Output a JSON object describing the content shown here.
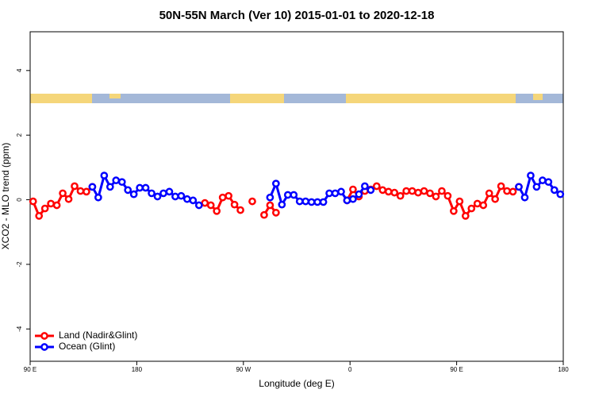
{
  "chart_data": {
    "type": "line",
    "title": "50N-55N March (Ver 10)   2015-01-01 to 2020-12-18",
    "xlabel": "Longitude (deg E)",
    "ylabel": "XCO2 - MLO trend (ppm)",
    "xlim": [
      90,
      540
    ],
    "xticks": [
      {
        "value": 90,
        "label": "90 E"
      },
      {
        "value": 180,
        "label": "180"
      },
      {
        "value": 270,
        "label": "90 W"
      },
      {
        "value": 360,
        "label": "0"
      },
      {
        "value": 450,
        "label": "90 E"
      },
      {
        "value": 540,
        "label": "180"
      }
    ],
    "ylim": [
      -5,
      5.2
    ],
    "yticks": [
      -4,
      -2,
      0,
      2,
      4
    ],
    "legend": "bottom-left",
    "x": [
      92.5,
      97.5,
      102.5,
      107.5,
      112.5,
      117.5,
      122.5,
      127.5,
      132.5,
      137.5,
      142.5,
      147.5,
      152.5,
      157.5,
      162.5,
      167.5,
      172.5,
      177.5,
      182.5,
      187.5,
      192.5,
      197.5,
      202.5,
      207.5,
      212.5,
      217.5,
      222.5,
      227.5,
      232.5,
      237.5,
      242.5,
      247.5,
      252.5,
      257.5,
      262.5,
      267.5,
      272.5,
      277.5,
      282.5,
      287.5,
      292.5,
      297.5,
      302.5,
      307.5,
      312.5,
      317.5,
      322.5,
      327.5,
      332.5,
      337.5,
      342.5,
      347.5,
      352.5,
      357.5,
      362.5,
      367.5,
      372.5,
      377.5,
      382.5,
      387.5,
      392.5,
      397.5,
      402.5,
      407.5,
      412.5,
      417.5,
      422.5,
      427.5,
      432.5,
      437.5,
      442.5,
      447.5,
      452.5,
      457.5,
      462.5,
      467.5,
      472.5,
      477.5,
      482.5,
      487.5,
      492.5,
      497.5,
      502.5,
      507.5,
      512.5,
      517.5,
      522.5,
      527.5,
      532.5,
      537.5
    ],
    "series": [
      {
        "name": "Land (Nadir&Glint)",
        "color": "#ff0000",
        "values": [
          -0.05,
          -0.5,
          -0.27,
          -0.12,
          -0.17,
          0.2,
          0.02,
          0.42,
          0.27,
          0.25,
          0.4,
          null,
          null,
          null,
          null,
          null,
          null,
          null,
          null,
          null,
          null,
          null,
          null,
          null,
          null,
          null,
          null,
          null,
          null,
          -0.1,
          -0.17,
          -0.35,
          0.07,
          0.12,
          -0.15,
          -0.32,
          null,
          -0.05,
          null,
          -0.47,
          -0.17,
          -0.4,
          null,
          null,
          null,
          null,
          null,
          null,
          null,
          null,
          null,
          null,
          null,
          -0.02,
          0.32,
          0.1,
          0.27,
          0.32,
          0.42,
          0.3,
          0.25,
          0.22,
          0.12,
          0.27,
          0.27,
          0.22,
          0.27,
          0.2,
          0.1,
          0.27,
          0.12,
          -0.35,
          -0.05,
          -0.5,
          -0.27,
          -0.12,
          -0.17,
          0.2,
          0.02,
          0.42,
          0.27,
          0.25,
          0.4,
          null,
          null,
          null,
          null,
          null,
          null,
          null
        ]
      },
      {
        "name": "Ocean (Glint)",
        "color": "#0000ff",
        "values": [
          null,
          null,
          null,
          null,
          null,
          null,
          null,
          null,
          null,
          null,
          0.4,
          0.07,
          0.75,
          0.4,
          0.6,
          0.55,
          0.3,
          0.17,
          0.37,
          0.37,
          0.2,
          0.1,
          0.2,
          0.25,
          0.1,
          0.12,
          0.02,
          -0.02,
          -0.17,
          null,
          null,
          null,
          null,
          null,
          null,
          null,
          null,
          null,
          null,
          null,
          0.07,
          0.5,
          -0.15,
          0.15,
          0.15,
          -0.05,
          -0.05,
          -0.07,
          -0.07,
          -0.07,
          0.2,
          0.2,
          0.25,
          -0.02,
          0.02,
          0.17,
          0.42,
          0.3,
          null,
          null,
          null,
          null,
          null,
          null,
          null,
          null,
          null,
          null,
          null,
          null,
          null,
          null,
          null,
          null,
          null,
          null,
          null,
          null,
          null,
          null,
          null,
          null,
          0.4,
          0.07,
          0.75,
          0.4,
          0.6,
          0.55,
          0.3,
          0.17
        ]
      }
    ]
  }
}
